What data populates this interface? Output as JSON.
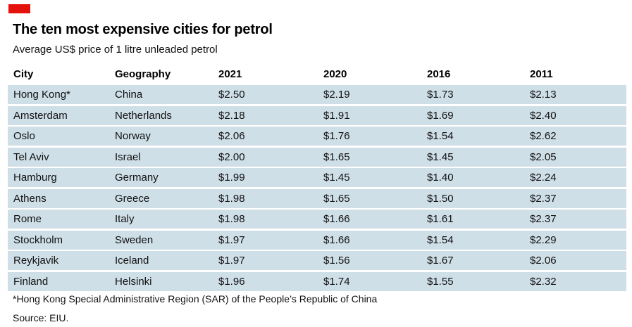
{
  "colors": {
    "accent_red": "#e3120b",
    "row_fill": "#cfdfe8",
    "text": "#111111"
  },
  "chart_data": {
    "type": "table",
    "title": "The ten most expensive cities for petrol",
    "subtitle": "Average US$ price of 1 litre unleaded petrol",
    "columns": [
      "City",
      "Geography",
      "2021",
      "2020",
      "2016",
      "2011"
    ],
    "rows": [
      [
        "Hong Kong*",
        "China",
        "$2.50",
        "$2.19",
        "$1.73",
        "$2.13"
      ],
      [
        "Amsterdam",
        "Netherlands",
        "$2.18",
        "$1.91",
        "$1.69",
        "$2.40"
      ],
      [
        "Oslo",
        "Norway",
        "$2.06",
        "$1.76",
        "$1.54",
        "$2.62"
      ],
      [
        "Tel Aviv",
        "Israel",
        "$2.00",
        "$1.65",
        "$1.45",
        "$2.05"
      ],
      [
        "Hamburg",
        "Germany",
        "$1.99",
        "$1.45",
        "$1.40",
        "$2.24"
      ],
      [
        "Athens",
        "Greece",
        "$1.98",
        "$1.65",
        "$1.50",
        "$2.37"
      ],
      [
        "Rome",
        "Italy",
        "$1.98",
        "$1.66",
        "$1.61",
        "$2.37"
      ],
      [
        "Stockholm",
        "Sweden",
        "$1.97",
        "$1.66",
        "$1.54",
        "$2.29"
      ],
      [
        "Reykjavik",
        "Iceland",
        "$1.97",
        "$1.56",
        "$1.67",
        "$2.06"
      ],
      [
        "Finland",
        "Helsinki",
        "$1.96",
        "$1.74",
        "$1.55",
        "$2.32"
      ]
    ],
    "footnote": "*Hong Kong Special Administrative Region (SAR) of the People’s Republic of China",
    "source": "Source: EIU."
  }
}
